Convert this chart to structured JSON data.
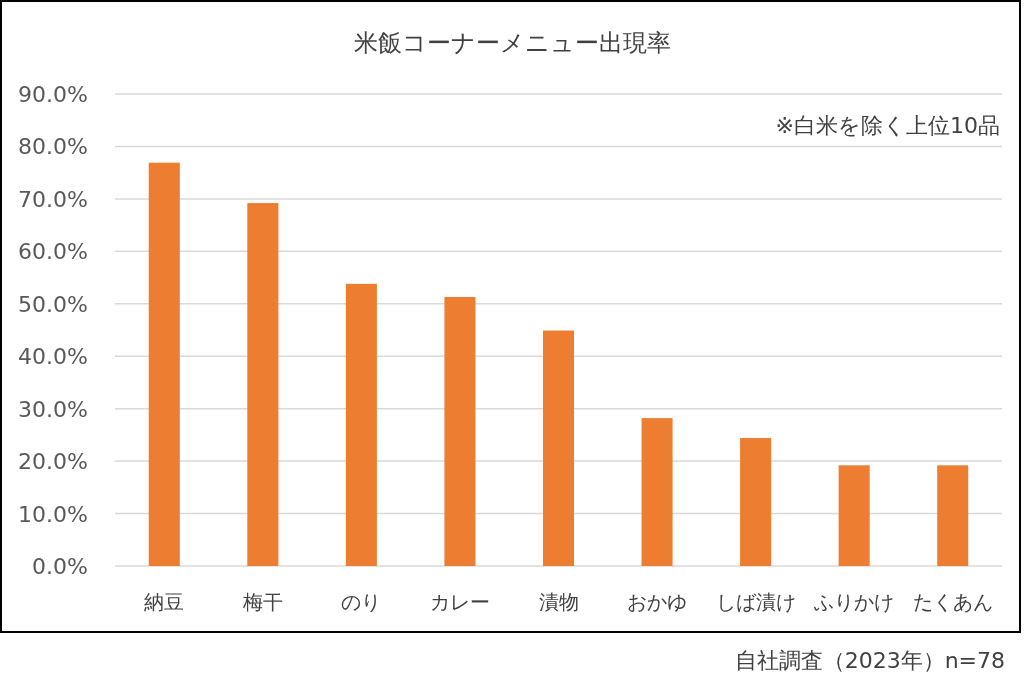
{
  "chart_data": {
    "type": "bar",
    "title": "米飯コーナーメニュー出現率",
    "categories": [
      "納豆",
      "梅干",
      "のり",
      "カレー",
      "漬物",
      "おかゆ",
      "しば漬け",
      "ふりかけ",
      "たくあん"
    ],
    "values": [
      76.9,
      69.2,
      53.8,
      51.3,
      44.9,
      28.2,
      24.4,
      19.2,
      19.2
    ],
    "color": "#ed7d31",
    "ylim": [
      0,
      90
    ],
    "yticks": [
      {
        "value": 0,
        "label": "0.0%"
      },
      {
        "value": 10,
        "label": "10.0%"
      },
      {
        "value": 20,
        "label": "20.0%"
      },
      {
        "value": 30,
        "label": "30.0%"
      },
      {
        "value": 40,
        "label": "40.0%"
      },
      {
        "value": 50,
        "label": "50.0%"
      },
      {
        "value": 60,
        "label": "60.0%"
      },
      {
        "value": 70,
        "label": "70.0%"
      },
      {
        "value": 80,
        "label": "80.0%"
      },
      {
        "value": 90,
        "label": "90.0%"
      }
    ],
    "grid": "y",
    "annotations": [
      "※白米を除く上位10品",
      "自社調査（2023年）n=78"
    ]
  }
}
